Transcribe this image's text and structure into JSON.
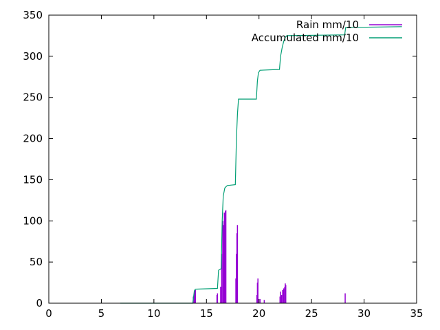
{
  "chart_data": {
    "type": "line",
    "title": "",
    "xlabel": "",
    "ylabel": "",
    "xlim": [
      0,
      35
    ],
    "ylim": [
      0,
      350
    ],
    "xticks": [
      0,
      5,
      10,
      15,
      20,
      25,
      30,
      35
    ],
    "yticks": [
      0,
      50,
      100,
      150,
      200,
      250,
      300,
      350
    ],
    "grid": false,
    "legend_position": "top-right",
    "series": [
      {
        "name": "Rain mm/10",
        "style": "impulses",
        "color": "#9400d3",
        "points": [
          [
            13.75,
            8
          ],
          [
            13.85,
            15
          ],
          [
            13.95,
            16
          ],
          [
            16.0,
            10
          ],
          [
            16.05,
            12
          ],
          [
            16.35,
            20
          ],
          [
            16.45,
            60
          ],
          [
            16.55,
            100
          ],
          [
            16.6,
            95
          ],
          [
            16.7,
            110
          ],
          [
            16.8,
            112
          ],
          [
            16.85,
            113
          ],
          [
            17.8,
            30
          ],
          [
            17.85,
            60
          ],
          [
            17.9,
            85
          ],
          [
            17.95,
            95
          ],
          [
            19.8,
            10
          ],
          [
            19.85,
            25
          ],
          [
            19.9,
            30
          ],
          [
            20.1,
            5
          ],
          [
            20.5,
            4
          ],
          [
            22.0,
            8
          ],
          [
            22.05,
            14
          ],
          [
            22.15,
            10
          ],
          [
            22.25,
            16
          ],
          [
            22.35,
            18
          ],
          [
            22.45,
            20
          ],
          [
            22.5,
            24
          ],
          [
            22.55,
            22
          ],
          [
            28.2,
            12
          ]
        ]
      },
      {
        "name": "Accumulated mm/10",
        "style": "line",
        "color": "#009e73",
        "points": [
          [
            6.8,
            0
          ],
          [
            13.7,
            0
          ],
          [
            13.85,
            15
          ],
          [
            13.95,
            17
          ],
          [
            16.05,
            18
          ],
          [
            16.15,
            40
          ],
          [
            16.4,
            42
          ],
          [
            16.5,
            100
          ],
          [
            16.6,
            130
          ],
          [
            16.75,
            140
          ],
          [
            16.9,
            142
          ],
          [
            17.0,
            143
          ],
          [
            17.75,
            144
          ],
          [
            17.85,
            200
          ],
          [
            17.95,
            230
          ],
          [
            18.05,
            248
          ],
          [
            19.75,
            248
          ],
          [
            19.85,
            270
          ],
          [
            19.95,
            280
          ],
          [
            20.1,
            283
          ],
          [
            21.95,
            284
          ],
          [
            22.05,
            300
          ],
          [
            22.2,
            310
          ],
          [
            22.35,
            318
          ],
          [
            22.5,
            323
          ],
          [
            22.65,
            325
          ],
          [
            28.15,
            326
          ],
          [
            28.25,
            335
          ],
          [
            33.6,
            336
          ]
        ]
      }
    ]
  }
}
